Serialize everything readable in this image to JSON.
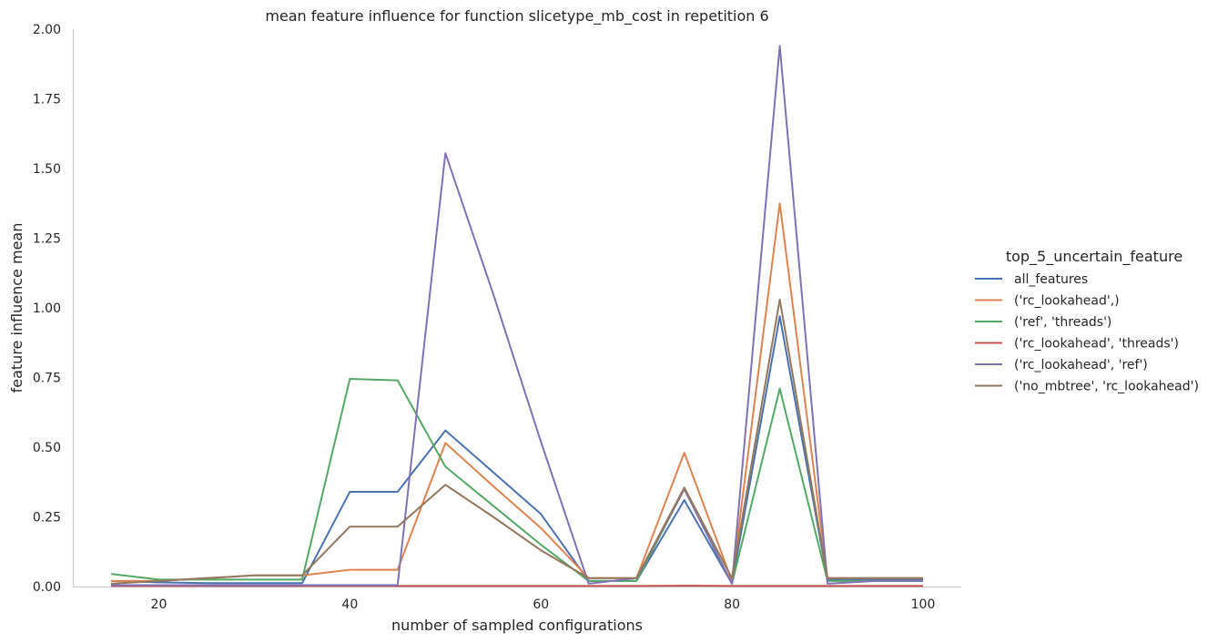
{
  "chart_data": {
    "type": "line",
    "title": "mean feature influence for function slicetype_mb_cost in repetition 6",
    "xlabel": "number of sampled configurations",
    "ylabel": "feature influence mean",
    "xlim": [
      11,
      104
    ],
    "ylim": [
      0,
      2.0
    ],
    "xticks": [
      20,
      40,
      60,
      80,
      100
    ],
    "yticks": [
      0.0,
      0.25,
      0.5,
      0.75,
      1.0,
      1.25,
      1.5,
      1.75,
      2.0
    ],
    "xtick_labels": [
      "20",
      "40",
      "60",
      "80",
      "100"
    ],
    "ytick_labels": [
      "0.00",
      "0.25",
      "0.50",
      "0.75",
      "1.00",
      "1.25",
      "1.50",
      "1.75",
      "2.00"
    ],
    "grid": false,
    "legend_title": "top_5_uncertain_feature",
    "legend_position": "right",
    "x": [
      15,
      20,
      25,
      30,
      35,
      40,
      45,
      50,
      55,
      60,
      65,
      70,
      75,
      80,
      85,
      90,
      95,
      100
    ],
    "series": [
      {
        "name": "all_features",
        "color": "#4c72b0",
        "values": [
          0.02,
          0.015,
          0.012,
          0.012,
          0.012,
          0.34,
          0.34,
          0.56,
          0.41,
          0.26,
          0.02,
          0.02,
          0.31,
          0.01,
          0.97,
          0.025,
          0.025,
          0.025
        ]
      },
      {
        "name": "('rc_lookahead',)",
        "color": "#dd8452",
        "values": [
          0.02,
          0.02,
          0.03,
          0.04,
          0.04,
          0.06,
          0.06,
          0.515,
          0.36,
          0.21,
          0.03,
          0.03,
          0.48,
          0.02,
          1.375,
          0.03,
          0.03,
          0.03
        ]
      },
      {
        "name": "('ref', 'threads')",
        "color": "#55a868",
        "values": [
          0.045,
          0.025,
          0.025,
          0.025,
          0.025,
          0.745,
          0.74,
          0.43,
          0.29,
          0.15,
          0.02,
          0.02,
          0.35,
          0.01,
          0.71,
          0.02,
          0.02,
          0.02
        ]
      },
      {
        "name": "('rc_lookahead', 'threads')",
        "color": "#c44e52",
        "values": [
          0.002,
          0.002,
          0.002,
          0.002,
          0.002,
          0.002,
          0.002,
          0.002,
          0.002,
          0.002,
          0.002,
          0.002,
          0.003,
          0.002,
          0.002,
          0.002,
          0.002,
          0.002
        ]
      },
      {
        "name": "('rc_lookahead', 'ref')",
        "color": "#8172b3",
        "values": [
          0.005,
          0.005,
          0.005,
          0.005,
          0.005,
          0.005,
          0.005,
          1.555,
          1.05,
          0.52,
          0.01,
          0.03,
          0.35,
          0.01,
          1.94,
          0.01,
          0.02,
          0.02
        ]
      },
      {
        "name": "('no_mbtree', 'rc_lookahead')",
        "color": "#937860",
        "values": [
          0.01,
          0.02,
          0.03,
          0.04,
          0.04,
          0.215,
          0.215,
          0.365,
          0.25,
          0.13,
          0.03,
          0.03,
          0.355,
          0.03,
          1.03,
          0.03,
          0.03,
          0.03
        ]
      }
    ]
  }
}
